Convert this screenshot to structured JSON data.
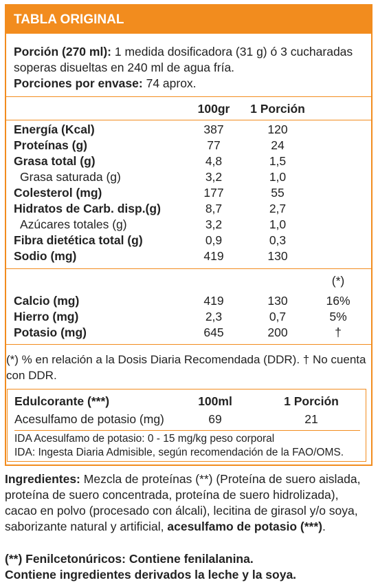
{
  "header": {
    "title": "TABLA ORIGINAL"
  },
  "portion": {
    "label": "Porción (270 ml):",
    "text1": " 1 medida dosificadora (31 g) ó 3 cucharadas",
    "text2": "soperas disueltas en 240 ml de agua fría.",
    "servings_label": "Porciones por envase:",
    "servings_value": " 74 aprox."
  },
  "columns": {
    "c1": "100gr",
    "c2": "1 Porción"
  },
  "nutrients": [
    {
      "name": "Energía (Kcal)",
      "v1": "387",
      "v2": "120"
    },
    {
      "name": "Proteínas (g)",
      "v1": "77",
      "v2": "24"
    },
    {
      "name": "Grasa total (g)",
      "v1": "4,8",
      "v2": "1,5"
    },
    {
      "name": "Grasa saturada (g)",
      "v1": "3,2",
      "v2": "1,0"
    },
    {
      "name": "Colesterol (mg)",
      "v1": "177",
      "v2": "55"
    },
    {
      "name": "Hidratos de Carb. disp.(g)",
      "v1": "8,7",
      "v2": "2,7"
    },
    {
      "name": "Azúcares totales (g)",
      "v1": "3,2",
      "v2": "1,0"
    },
    {
      "name": "Fibra dietética total (g)",
      "v1": "0,9",
      "v2": "0,3"
    },
    {
      "name": "Sodio (mg)",
      "v1": "419",
      "v2": "130"
    }
  ],
  "minerals": {
    "ddr_header": "(*)",
    "rows": [
      {
        "name": "Calcio (mg)",
        "v1": "419",
        "v2": "130",
        "v3": "16%"
      },
      {
        "name": "Hierro (mg)",
        "v1": "2,3",
        "v2": "0,7",
        "v3": "5%"
      },
      {
        "name": "Potasio (mg)",
        "v1": "645",
        "v2": "200",
        "v3": "†"
      }
    ]
  },
  "footnote": {
    "line1": "(*) % en relación a la Dosis Diaria Recomendada (DDR).  † No cuenta",
    "line2": "con DDR."
  },
  "sweetener": {
    "title": "Edulcorante (***)",
    "c1": "100ml",
    "c2": "1 Porción",
    "name": "Acesulfamo de potasio (mg)",
    "v1": "69",
    "v2": "21",
    "ida1": "IDA Acesulfamo de potasio: 0 - 15 mg/kg peso corporal",
    "ida2": "IDA: Ingesta Diaria Admisible, según recomendación de la FAO/OMS."
  },
  "ingredients": {
    "label": "Ingredientes:",
    "l1": " Mezcla de proteínas (**) (Proteína de suero aislada,",
    "l2": "proteína de suero concentrada, proteína de suero hidrolizada),",
    "l3": "cacao en polvo (procesado con álcali), lecitina de girasol y/o soya,",
    "l4": "saborizante natural y artificial, ",
    "l4b": "acesulfamo de potasio (***)",
    "l4c": "."
  },
  "warnings": {
    "w1": "(**) Fenilcetonúricos: Contiene fenilalanina.",
    "w2": "Contiene ingredientes derivados la leche y la soya."
  }
}
